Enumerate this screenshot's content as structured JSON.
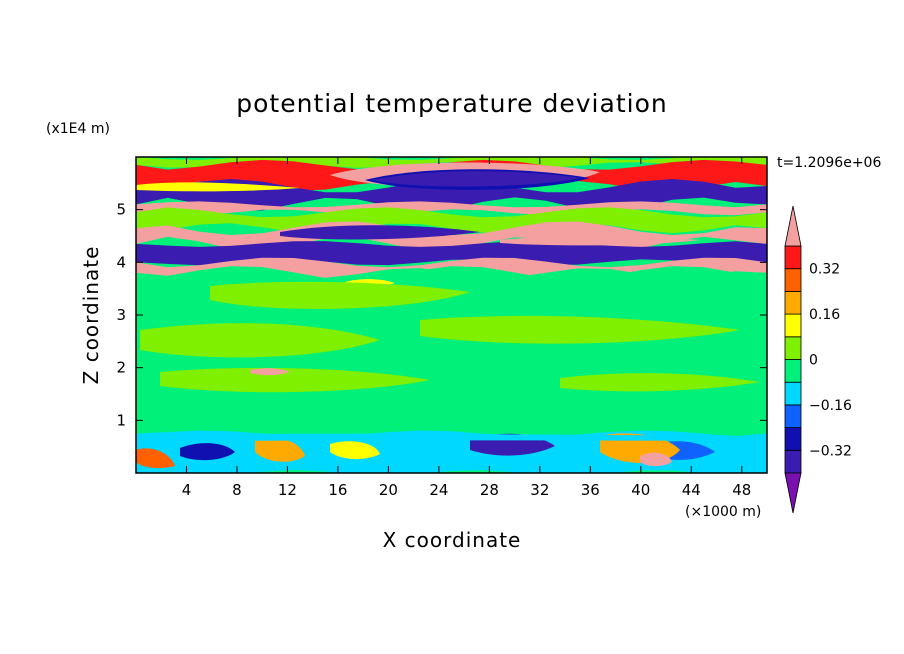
{
  "chart_data": {
    "type": "heatmap",
    "title": "potential temperature deviation",
    "xlabel": "X coordinate",
    "ylabel": "Z coordinate",
    "x_unit": "(×1000 m)",
    "y_unit": "(x1E4 m)",
    "time_label": "t=1.2096e+06",
    "xlim": [
      0,
      50
    ],
    "ylim": [
      0,
      6
    ],
    "x_ticks": [
      4,
      8,
      12,
      16,
      20,
      24,
      28,
      32,
      36,
      40,
      44,
      48
    ],
    "y_ticks": [
      1,
      2,
      3,
      4,
      5
    ],
    "colorbar": {
      "levels": [
        -0.4,
        -0.32,
        -0.24,
        -0.16,
        -0.08,
        0,
        0.08,
        0.16,
        0.24,
        0.32,
        0.4
      ],
      "tick_labels": [
        "0.32",
        "0.16",
        "0",
        "−0.16",
        "−0.32"
      ],
      "tick_values": [
        0.32,
        0.16,
        0,
        -0.16,
        -0.32
      ],
      "colors": [
        "#7a10b0",
        "#3a1cb0",
        "#1010b0",
        "#1062ff",
        "#00d8ff",
        "#00f07a",
        "#7ef000",
        "#ffff00",
        "#ffaa00",
        "#ff6000",
        "#ff1818",
        "#f5a0a0"
      ],
      "extend": "both"
    },
    "layers": [
      {
        "z": [
          5.85,
          6.0
        ],
        "theta": 0.04
      },
      {
        "z": [
          5.45,
          5.85
        ],
        "theta": 0.35
      },
      {
        "z": [
          5.1,
          5.45
        ],
        "theta": -0.4
      },
      {
        "z": [
          4.95,
          5.1
        ],
        "theta": 0.4
      },
      {
        "z": [
          4.65,
          4.95
        ],
        "theta": 0.02
      },
      {
        "z": [
          4.35,
          4.65
        ],
        "theta": 0.4
      },
      {
        "z": [
          4.0,
          4.35
        ],
        "theta": -0.4
      },
      {
        "z": [
          3.8,
          4.0
        ],
        "theta": 0.4
      },
      {
        "z": [
          0.75,
          3.8
        ],
        "theta": -0.02
      },
      {
        "z": [
          0.0,
          0.75
        ],
        "theta": -0.12
      }
    ]
  }
}
